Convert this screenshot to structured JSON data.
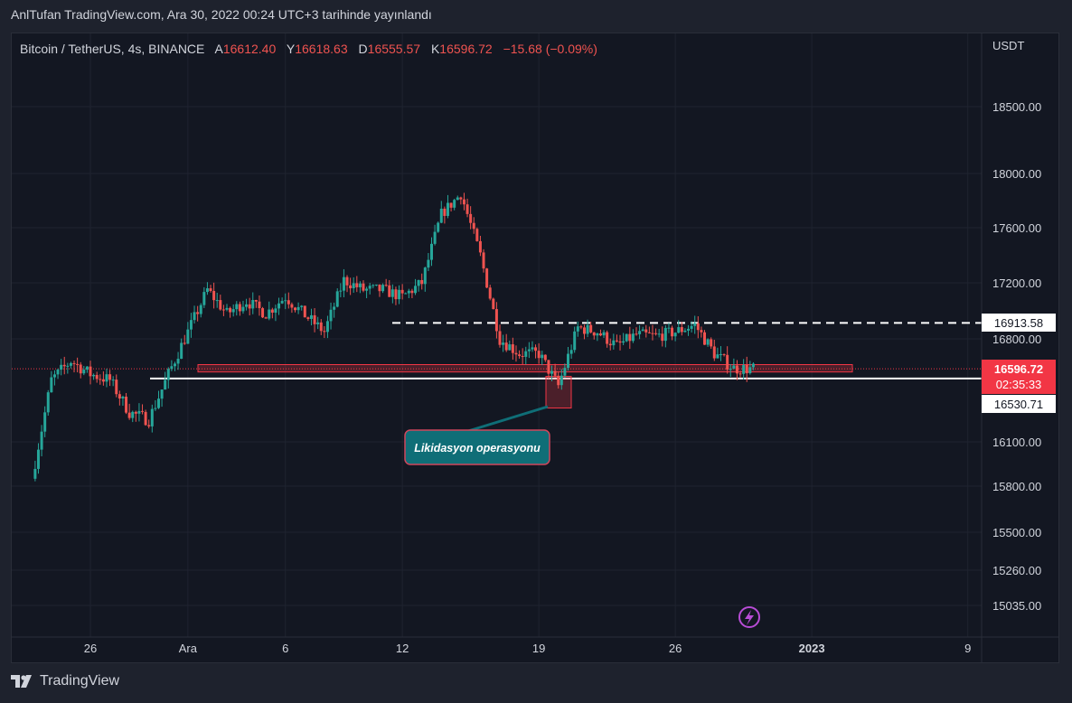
{
  "header": {
    "published": "AnlTufan TradingView.com, Ara 30, 2022 00:24 UTC+3 tarihinde yayınlandı"
  },
  "legend": {
    "symbol": "Bitcoin / TetherUS, 4s, BINANCE",
    "o_label": "A",
    "o_value": "16612.40",
    "h_label": "Y",
    "h_value": "16618.63",
    "l_label": "D",
    "l_value": "16555.57",
    "c_label": "K",
    "c_value": "16596.72",
    "change": "−15.68 (−0.09%)"
  },
  "axis": {
    "currency": "USDT"
  },
  "badges": {
    "resistance": "16913.58",
    "last_price": "16596.72",
    "countdown": "02:35:33",
    "support": "16530.71"
  },
  "annotation": {
    "text": "Likidasyon operasyonu"
  },
  "footer": {
    "brand": "TradingView"
  },
  "colors": {
    "up": "#26a69a",
    "down": "#ef5350",
    "bg": "#131722",
    "grid": "#1f2330",
    "label_box": "#0f6e77",
    "red_badge": "#f23645"
  },
  "chart_data": {
    "type": "candlestick",
    "title": "Bitcoin / TetherUS, 4s, BINANCE",
    "y_ticks": [
      18500,
      18000,
      17600,
      17200,
      16800,
      16100,
      15800,
      15500,
      15260,
      15035
    ],
    "y_tick_labels": [
      "18500.00",
      "18000.00",
      "17600.00",
      "17200.00",
      "16800.00",
      "16100.00",
      "15800.00",
      "15500.00",
      "15260.00",
      "15035.00"
    ],
    "x_tick_labels": [
      "26",
      "Ara",
      "6",
      "12",
      "19",
      "26",
      "2023",
      "9"
    ],
    "horizontal_levels": [
      {
        "value": 16913.58,
        "style": "dashed"
      },
      {
        "value": 16530.71,
        "style": "solid"
      },
      {
        "value": 16596.72,
        "style": "dotted"
      }
    ],
    "anchors": [
      [
        "Nov 23",
        15850
      ],
      [
        "Nov 24",
        16520
      ],
      [
        "Nov 25",
        16650
      ],
      [
        "Nov 26",
        16560
      ],
      [
        "Nov 27",
        16520
      ],
      [
        "Nov 28",
        16300
      ],
      [
        "Nov 29",
        16250
      ],
      [
        "Nov 30",
        16560
      ],
      [
        "Dec 01",
        16850
      ],
      [
        "Dec 02",
        17150
      ],
      [
        "Dec 03",
        16980
      ],
      [
        "Dec 04",
        17070
      ],
      [
        "Dec 05",
        16980
      ],
      [
        "Dec 06",
        17100
      ],
      [
        "Dec 07",
        16970
      ],
      [
        "Dec 08",
        16850
      ],
      [
        "Dec 09",
        17220
      ],
      [
        "Dec 10",
        17150
      ],
      [
        "Dec 11",
        17150
      ],
      [
        "Dec 12",
        17100
      ],
      [
        "Dec 13",
        17200
      ],
      [
        "Dec 14",
        17700
      ],
      [
        "Dec 15",
        17850
      ],
      [
        "Dec 16",
        17400
      ],
      [
        "Dec 17",
        16800
      ],
      [
        "Dec 18",
        16700
      ],
      [
        "Dec 19",
        16700
      ],
      [
        "Dec 20",
        16480
      ],
      [
        "Dec 21",
        16880
      ],
      [
        "Dec 22",
        16850
      ],
      [
        "Dec 23",
        16750
      ],
      [
        "Dec 24",
        16830
      ],
      [
        "Dec 25",
        16820
      ],
      [
        "Dec 26",
        16850
      ],
      [
        "Dec 27",
        16900
      ],
      [
        "Dec 28",
        16700
      ],
      [
        "Dec 29",
        16600
      ],
      [
        "Dec 30",
        16596
      ]
    ]
  }
}
